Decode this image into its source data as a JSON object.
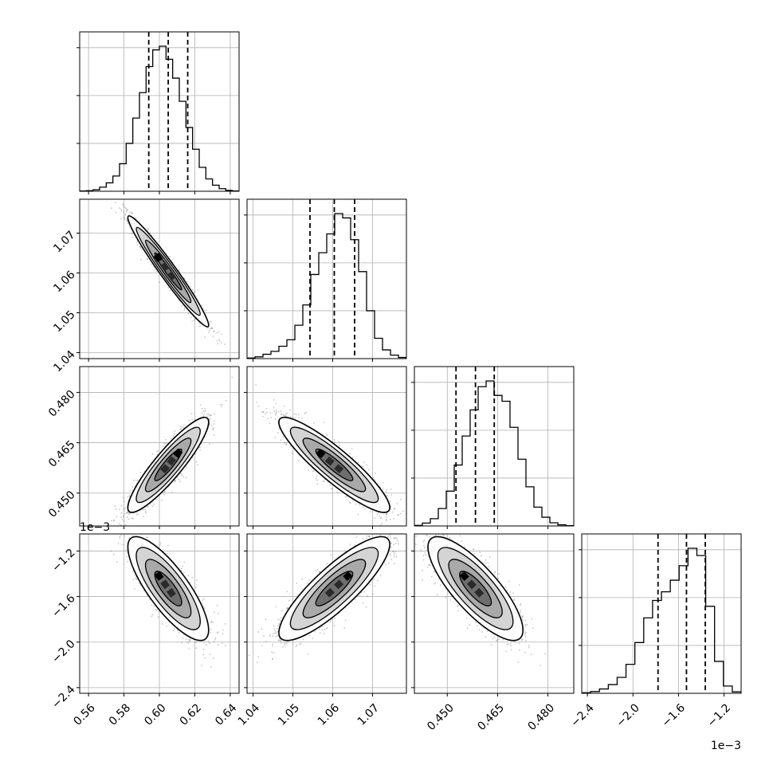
{
  "chart_data": {
    "type": "corner",
    "grid": true,
    "colors": {
      "hist": "#000000",
      "points": "#808080",
      "contour": "#000000",
      "grid": "#b0b0b0"
    },
    "parameters": [
      {
        "range": [
          0.555,
          0.645
        ],
        "ticks": [
          0.56,
          0.58,
          0.6,
          0.62,
          0.64
        ],
        "tick_labels": [
          "0.56",
          "0.58",
          "0.60",
          "0.62",
          "0.64"
        ],
        "offset_label": "",
        "quantiles": [
          0.594,
          0.605,
          0.616
        ],
        "mean": 0.605,
        "sd": 0.0095
      },
      {
        "range": [
          1.0385,
          1.0785
        ],
        "ticks": [
          1.04,
          1.05,
          1.06,
          1.07
        ],
        "tick_labels": [
          "1.04",
          "1.05",
          "1.06",
          "1.07"
        ],
        "offset_label": "",
        "quantiles": [
          1.0543,
          1.0604,
          1.0655
        ],
        "mean": 1.0604,
        "sd": 0.0058
      },
      {
        "range": [
          0.4402,
          0.4877
        ],
        "ticks": [
          0.45,
          0.465,
          0.48
        ],
        "tick_labels": [
          "0.450",
          "0.465",
          "0.480"
        ],
        "offset_label": "",
        "quantiles": [
          0.4526,
          0.4584,
          0.464
        ],
        "mean": 0.4584,
        "sd": 0.0059
      },
      {
        "range": [
          -2.45,
          -1.05
        ],
        "ticks": [
          -2.4,
          -2.0,
          -1.6,
          -1.2
        ],
        "tick_labels": [
          "−2.4",
          "−2.0",
          "−1.6",
          "−1.2"
        ],
        "offset_label": "1e−3",
        "quantiles": [
          -1.78,
          -1.53,
          -1.365
        ],
        "mean": -1.53,
        "sd": 0.19
      }
    ],
    "correlations": [
      {
        "i": 0,
        "j": 1,
        "rho": -0.97
      },
      {
        "i": 0,
        "j": 2,
        "rho": 0.9
      },
      {
        "i": 1,
        "j": 2,
        "rho": -0.9
      },
      {
        "i": 0,
        "j": 3,
        "rho": -0.8
      },
      {
        "i": 1,
        "j": 3,
        "rho": 0.85
      },
      {
        "i": 2,
        "j": 3,
        "rho": -0.8
      }
    ],
    "histograms": [
      [
        0.002,
        0.004,
        0.01,
        0.028,
        0.058,
        0.105,
        0.19,
        0.33,
        0.505,
        0.68,
        0.86,
        0.975,
        1.0,
        0.91,
        0.78,
        0.62,
        0.44,
        0.29,
        0.165,
        0.085,
        0.042,
        0.018,
        0.006,
        0.002
      ],
      [
        0.004,
        0.012,
        0.03,
        0.05,
        0.085,
        0.13,
        0.23,
        0.37,
        0.58,
        0.73,
        0.86,
        1.0,
        0.97,
        0.82,
        0.6,
        0.33,
        0.14,
        0.06,
        0.024,
        0.008
      ],
      [
        0.004,
        0.02,
        0.05,
        0.12,
        0.24,
        0.42,
        0.62,
        0.8,
        0.96,
        1.0,
        0.9,
        0.86,
        0.68,
        0.46,
        0.27,
        0.13,
        0.06,
        0.022,
        0.008,
        0.002
      ],
      [
        0.004,
        0.012,
        0.03,
        0.06,
        0.11,
        0.2,
        0.35,
        0.52,
        0.64,
        0.7,
        0.78,
        0.88,
        1.0,
        0.95,
        0.6,
        0.22,
        0.05,
        0.01
      ]
    ]
  }
}
